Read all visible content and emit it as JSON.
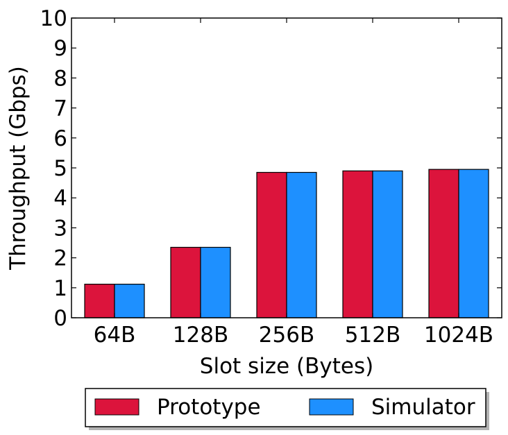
{
  "chart_data": {
    "type": "bar",
    "categories": [
      "64B",
      "128B",
      "256B",
      "512B",
      "1024B"
    ],
    "series": [
      {
        "name": "Prototype",
        "color": "#dc143c",
        "values": [
          1.12,
          2.35,
          4.85,
          4.9,
          4.95
        ]
      },
      {
        "name": "Simulator",
        "color": "#1e90ff",
        "values": [
          1.12,
          2.35,
          4.85,
          4.9,
          4.95
        ]
      }
    ],
    "xlabel": "Slot size (Bytes)",
    "ylabel": "Throughput (Gbps)",
    "ylim": [
      0,
      10
    ],
    "yticks": [
      "0",
      "1",
      "2",
      "3",
      "4",
      "5",
      "6",
      "7",
      "8",
      "9",
      "10"
    ],
    "grid": false,
    "legend_position": "bottom-center, outside plot"
  }
}
